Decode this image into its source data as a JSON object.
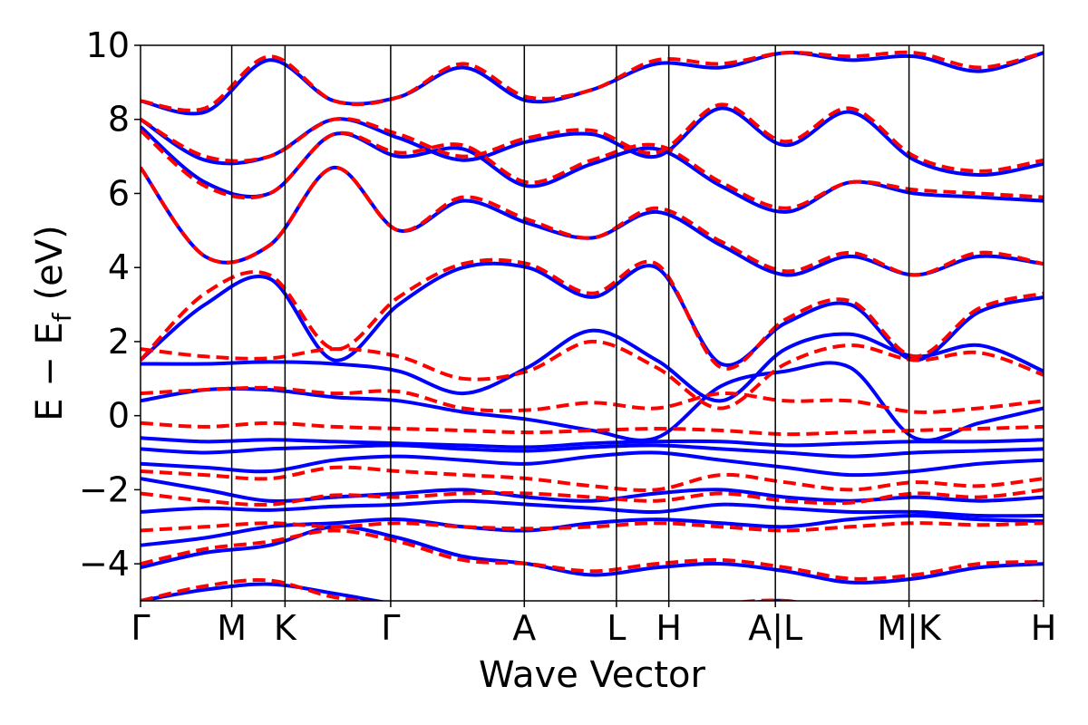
{
  "chart_data": {
    "type": "line",
    "title": "",
    "xlabel": "Wave Vector",
    "ylabel": "E − E",
    "ylabel_subscript": "f",
    "ylabel_unit": "(eV)",
    "ylim": [
      -5,
      10
    ],
    "y_ticks": [
      -4,
      -2,
      0,
      2,
      4,
      6,
      8,
      10
    ],
    "y_tick_labels": [
      "−4",
      "−2",
      "0",
      "2",
      "4",
      "6",
      "8",
      "10"
    ],
    "k_path": [
      "Γ",
      "M",
      "K",
      "Γ",
      "A",
      "L",
      "H",
      "A|L",
      "M|K",
      "H"
    ],
    "k_positions": [
      0.0,
      0.101,
      0.16,
      0.277,
      0.425,
      0.527,
      0.585,
      0.703,
      0.851,
      1.0
    ],
    "grid": false,
    "legend": "none",
    "series": [
      {
        "style": "solid",
        "color": "#0000ff",
        "bands": [
          [
            -5.0,
            -4.7,
            -4.55,
            -4.8,
            -5.1,
            -5.3,
            -5.2,
            -5.4,
            -5.6,
            -5.2,
            -5.0,
            -5.4,
            -5.6,
            -5.3,
            -5.1
          ],
          [
            -4.1,
            -3.7,
            -3.5,
            -3.0,
            -3.3,
            -3.8,
            -4.0,
            -4.3,
            -4.1,
            -4.0,
            -4.2,
            -4.5,
            -4.4,
            -4.1,
            -4.0
          ],
          [
            -3.5,
            -3.3,
            -3.0,
            -2.9,
            -2.8,
            -3.0,
            -3.1,
            -2.9,
            -2.8,
            -2.9,
            -3.0,
            -2.8,
            -2.7,
            -2.8,
            -2.85
          ],
          [
            -2.6,
            -2.5,
            -2.55,
            -2.45,
            -2.4,
            -2.3,
            -2.4,
            -2.5,
            -2.6,
            -2.4,
            -2.5,
            -2.6,
            -2.6,
            -2.7,
            -2.7
          ],
          [
            -1.7,
            -2.0,
            -2.3,
            -2.2,
            -2.1,
            -2.0,
            -2.2,
            -2.3,
            -2.1,
            -2.0,
            -2.2,
            -2.3,
            -2.2,
            -2.3,
            -2.2
          ],
          [
            -1.3,
            -1.4,
            -1.5,
            -1.2,
            -1.1,
            -1.2,
            -1.3,
            -1.1,
            -1.0,
            -1.2,
            -1.4,
            -1.6,
            -1.5,
            -1.3,
            -1.2
          ],
          [
            -0.9,
            -1.0,
            -0.9,
            -0.85,
            -0.8,
            -0.9,
            -0.95,
            -0.85,
            -0.8,
            -0.9,
            -1.0,
            -1.1,
            -1.0,
            -0.95,
            -0.9
          ],
          [
            -0.6,
            -0.7,
            -0.65,
            -0.7,
            -0.75,
            -0.8,
            -0.85,
            -0.75,
            -0.7,
            -0.7,
            -0.8,
            -0.75,
            -0.7,
            -0.7,
            -0.65
          ],
          [
            0.4,
            0.7,
            0.7,
            0.5,
            0.4,
            0.1,
            -0.1,
            -0.4,
            -0.6,
            0.8,
            1.2,
            1.3,
            -0.6,
            -0.2,
            0.2
          ],
          [
            1.4,
            1.4,
            1.45,
            1.4,
            1.2,
            0.6,
            1.3,
            2.3,
            1.5,
            0.4,
            1.8,
            2.2,
            1.6,
            1.9,
            1.2
          ],
          [
            1.5,
            3.0,
            3.7,
            1.5,
            3.0,
            4.0,
            4.0,
            3.2,
            4.0,
            1.4,
            2.5,
            3.0,
            1.5,
            2.8,
            3.2
          ],
          [
            6.7,
            4.3,
            4.6,
            6.7,
            5.0,
            5.8,
            5.2,
            4.8,
            5.5,
            4.6,
            3.8,
            4.3,
            3.8,
            4.3,
            4.1
          ],
          [
            7.8,
            6.3,
            6.0,
            7.6,
            7.0,
            7.2,
            6.2,
            6.8,
            7.2,
            6.2,
            5.5,
            6.3,
            6.0,
            5.9,
            5.8
          ],
          [
            8.0,
            6.9,
            7.0,
            8.0,
            7.5,
            6.9,
            7.4,
            7.6,
            7.0,
            8.3,
            7.3,
            8.2,
            6.9,
            6.5,
            6.8
          ],
          [
            8.5,
            8.2,
            9.6,
            8.5,
            8.6,
            9.4,
            8.5,
            8.8,
            9.5,
            9.4,
            9.8,
            9.6,
            9.7,
            9.3,
            9.8
          ]
        ]
      },
      {
        "style": "dashed",
        "color": "#ff0000",
        "bands": [
          [
            -5.0,
            -4.6,
            -4.45,
            -4.9,
            -5.1,
            -5.2,
            -5.2,
            -5.3,
            -5.5,
            -5.1,
            -5.0,
            -5.3,
            -5.5,
            -5.2,
            -5.0
          ],
          [
            -4.0,
            -3.6,
            -3.4,
            -3.1,
            -3.4,
            -3.9,
            -4.0,
            -4.2,
            -4.0,
            -3.9,
            -4.1,
            -4.4,
            -4.3,
            -4.0,
            -3.95
          ],
          [
            -3.1,
            -3.0,
            -2.9,
            -3.0,
            -2.9,
            -3.0,
            -3.05,
            -3.0,
            -2.9,
            -3.0,
            -3.1,
            -3.0,
            -2.9,
            -2.95,
            -2.9
          ],
          [
            -2.1,
            -2.3,
            -2.4,
            -2.15,
            -2.2,
            -2.1,
            -2.1,
            -2.2,
            -2.3,
            -2.1,
            -2.3,
            -2.35,
            -2.1,
            -2.2,
            -2.0
          ],
          [
            -1.5,
            -1.6,
            -1.7,
            -1.4,
            -1.5,
            -1.6,
            -1.7,
            -1.9,
            -2.0,
            -1.6,
            -1.8,
            -2.0,
            -1.8,
            -1.9,
            -1.7
          ],
          [
            -0.2,
            -0.3,
            -0.2,
            -0.3,
            -0.35,
            -0.4,
            -0.45,
            -0.4,
            -0.35,
            -0.4,
            -0.5,
            -0.45,
            -0.4,
            -0.35,
            -0.3
          ],
          [
            0.6,
            0.7,
            0.75,
            0.6,
            0.65,
            0.2,
            0.15,
            0.35,
            0.2,
            0.6,
            0.4,
            0.4,
            0.1,
            0.2,
            0.4
          ],
          [
            1.8,
            1.6,
            1.55,
            1.8,
            1.6,
            1.0,
            1.2,
            2.0,
            1.3,
            0.2,
            1.4,
            1.9,
            1.5,
            1.7,
            1.1
          ],
          [
            1.5,
            3.3,
            3.8,
            1.8,
            3.2,
            4.1,
            4.1,
            3.3,
            4.1,
            1.3,
            2.6,
            3.1,
            1.6,
            2.9,
            3.3
          ],
          [
            6.7,
            4.3,
            4.6,
            6.7,
            5.0,
            5.9,
            5.3,
            4.8,
            5.6,
            4.7,
            3.9,
            4.4,
            3.8,
            4.4,
            4.1
          ],
          [
            7.7,
            6.2,
            6.0,
            7.6,
            7.1,
            7.3,
            6.3,
            6.9,
            7.3,
            6.3,
            5.6,
            6.3,
            6.1,
            6.0,
            5.9
          ],
          [
            8.0,
            7.0,
            7.0,
            8.0,
            7.6,
            7.0,
            7.5,
            7.7,
            7.1,
            8.4,
            7.4,
            8.3,
            7.0,
            6.6,
            6.9
          ],
          [
            8.5,
            8.3,
            9.7,
            8.5,
            8.6,
            9.5,
            8.6,
            8.8,
            9.6,
            9.5,
            9.8,
            9.7,
            9.8,
            9.4,
            9.8
          ]
        ]
      }
    ]
  }
}
